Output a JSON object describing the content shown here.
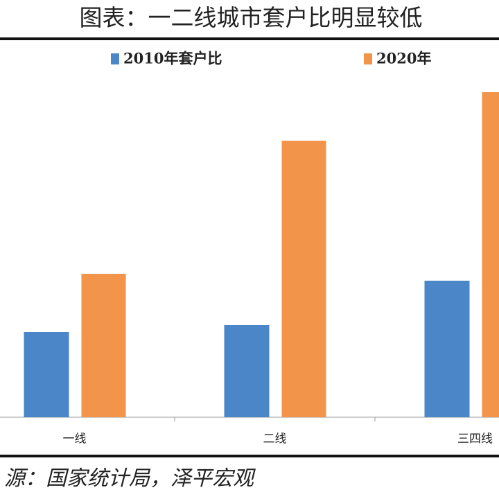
{
  "chart_data": {
    "type": "bar",
    "title": "图表：一二线城市套户比明显较低",
    "categories": [
      "一线",
      "二线",
      "三四线"
    ],
    "series": [
      {
        "name": "2010年套户比",
        "color": "#4a86c8",
        "values": [
          123,
          133,
          197
        ]
      },
      {
        "name": "2020年",
        "color": "#f2954a",
        "values": [
          207,
          399,
          469
        ]
      }
    ],
    "ylim": [
      0,
      542
    ],
    "source": "源：国家统计局，泽平宏观"
  }
}
